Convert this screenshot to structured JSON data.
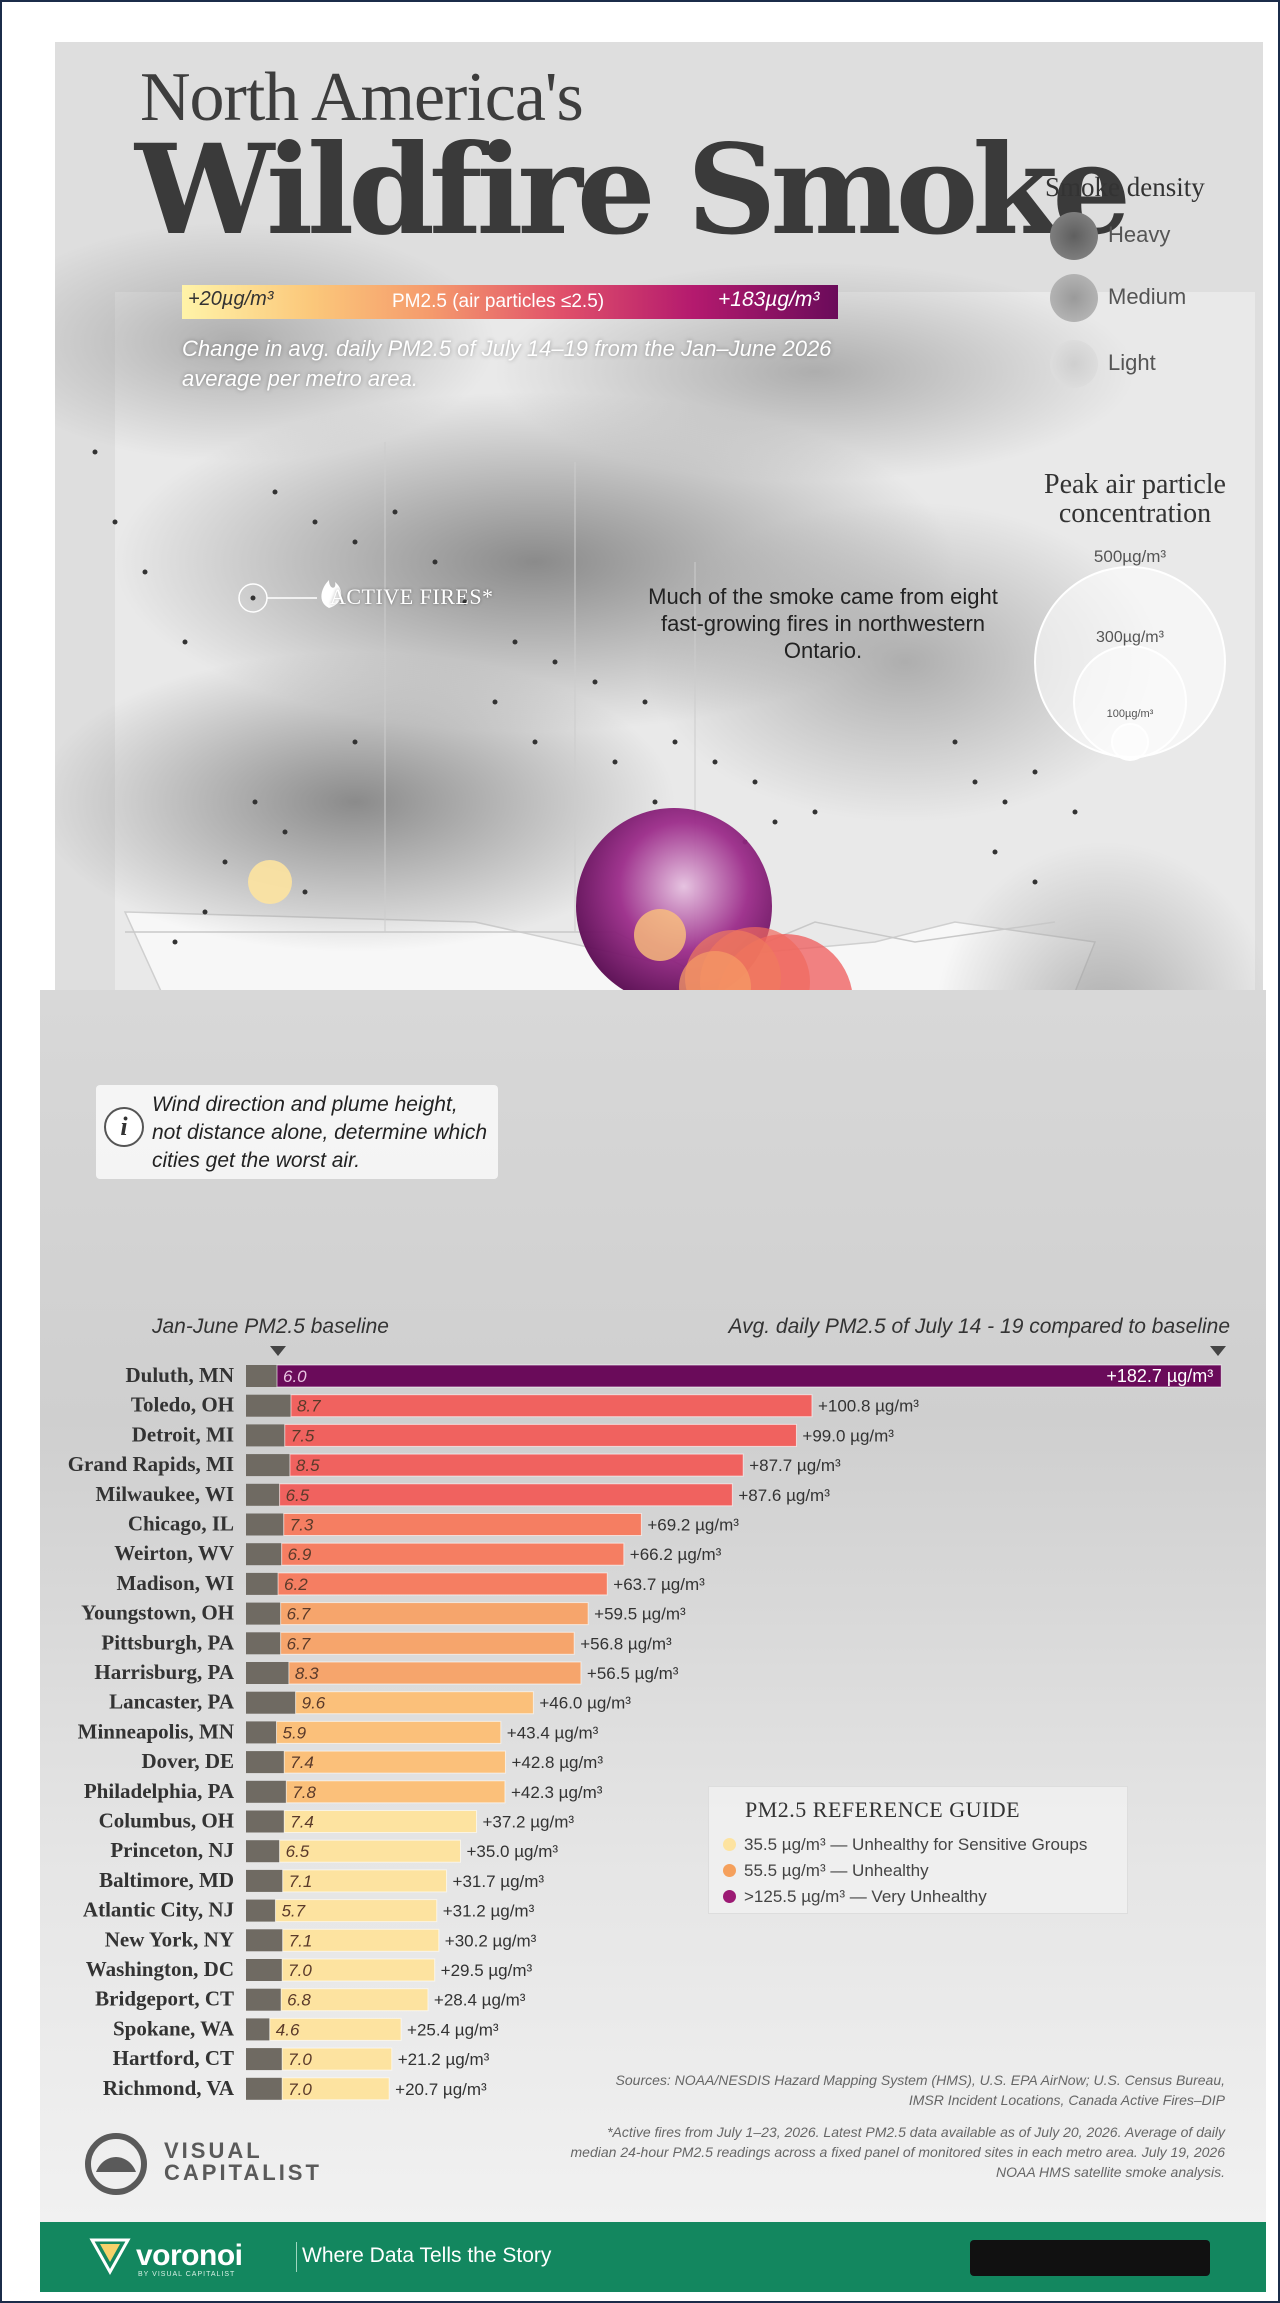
{
  "title": {
    "line1": "North America's",
    "line2": "Wildfire Smoke"
  },
  "scale": {
    "min_label": "+20µg/m³",
    "mid_label": "PM2.5 (air particles ≤2.5)",
    "max_label": "+183µg/m³"
  },
  "subtitle": "Change in avg. daily PM2.5 of July 14–19 from the Jan–June 2026 average per metro area.",
  "smoke_density": {
    "title": "Smoke density",
    "items": [
      {
        "label": "Heavy",
        "color": "#6a6a6a"
      },
      {
        "label": "Medium",
        "color": "#9a9a9a"
      },
      {
        "label": "Light",
        "color": "#cfcfcf"
      }
    ]
  },
  "peak": {
    "title": "Peak air particle concentration",
    "labels": [
      "500µg/m³",
      "300µg/m³",
      "100µg/m³"
    ]
  },
  "map": {
    "fires_label": "ACTIVE FIRES*",
    "note": "Much of the smoke came from eight fast-growing fires in northwestern Ontario.",
    "info_icon": "i",
    "info_text": "Wind direction and plume height, not distance alone, determine which cities get the worst air."
  },
  "chart_headers": {
    "left": "Jan-June PM2.5 baseline",
    "right": "Avg. daily PM2.5 of July 14 - 19 compared to baseline"
  },
  "chart_data": {
    "type": "bar",
    "value_unit": "µg/m³",
    "categories": [
      "Duluth, MN",
      "Toledo, OH",
      "Detroit, MI",
      "Grand Rapids, MI",
      "Milwaukee, WI",
      "Chicago, IL",
      "Weirton, WV",
      "Madison, WI",
      "Youngstown, OH",
      "Pittsburgh, PA",
      "Harrisburg, PA",
      "Lancaster, PA",
      "Minneapolis, MN",
      "Dover, DE",
      "Philadelphia, PA",
      "Columbus, OH",
      "Princeton, NJ",
      "Baltimore, MD",
      "Atlantic City, NJ",
      "New York, NY",
      "Washington, DC",
      "Bridgeport, CT",
      "Spokane, WA",
      "Hartford, CT",
      "Richmond, VA"
    ],
    "series": [
      {
        "name": "Jan-June PM2.5 baseline",
        "values": [
          6.0,
          8.7,
          7.5,
          8.5,
          6.5,
          7.3,
          6.9,
          6.2,
          6.7,
          6.7,
          8.3,
          9.6,
          5.9,
          7.4,
          7.8,
          7.4,
          6.5,
          7.1,
          5.7,
          7.1,
          7.0,
          6.8,
          4.6,
          7.0,
          7.0
        ]
      },
      {
        "name": "Avg. daily PM2.5 of July 14 - 19 compared to baseline",
        "values": [
          182.7,
          100.8,
          99.0,
          87.7,
          87.6,
          69.2,
          66.2,
          63.7,
          59.5,
          56.8,
          56.5,
          46.0,
          43.4,
          42.8,
          42.3,
          37.2,
          35.0,
          31.7,
          31.2,
          30.2,
          29.5,
          28.4,
          25.4,
          21.2,
          20.7
        ]
      }
    ],
    "baseline_labels": [
      "6.0",
      "8.7",
      "7.5",
      "8.5",
      "6.5",
      "7.3",
      "6.9",
      "6.2",
      "6.7",
      "6.7",
      "8.3",
      "9.6",
      "5.9",
      "7.4",
      "7.8",
      "7.4",
      "6.5",
      "7.1",
      "5.7",
      "7.1",
      "7.0",
      "6.8",
      "4.6",
      "7.0",
      "7.0"
    ],
    "change_labels": [
      "+182.7 µg/m³",
      "+100.8 µg/m³",
      "+99.0 µg/m³",
      "+87.7 µg/m³",
      "+87.6 µg/m³",
      "+69.2 µg/m³",
      "+66.2 µg/m³",
      "+63.7 µg/m³",
      "+59.5 µg/m³",
      "+56.8 µg/m³",
      "+56.5 µg/m³",
      "+46.0 µg/m³",
      "+43.4 µg/m³",
      "+42.8 µg/m³",
      "+42.3 µg/m³",
      "+37.2 µg/m³",
      "+35.0 µg/m³",
      "+31.7 µg/m³",
      "+31.2 µg/m³",
      "+30.2 µg/m³",
      "+29.5 µg/m³",
      "+28.4 µg/m³",
      "+25.4 µg/m³",
      "+21.2 µg/m³",
      "+20.7 µg/m³"
    ],
    "xlim": [
      0,
      190
    ]
  },
  "legend": {
    "title": "PM2.5 REFERENCE GUIDE",
    "items": [
      {
        "label": "35.5 µg/m³ — Unhealthy for Sensitive Groups",
        "color": "#fde3a0"
      },
      {
        "label": "55.5 µg/m³ — Unhealthy",
        "color": "#f5a05c"
      },
      {
        "label": ">125.5 µg/m³ — Very Unhealthy",
        "color": "#9c1a74"
      }
    ]
  },
  "sources": "Sources: NOAA/NESDIS Hazard Mapping System (HMS), U.S. EPA AirNow; U.S. Census Bureau, IMSR Incident Locations, Canada Active Fires–DIP",
  "footnote": "*Active fires from July 1–23, 2026. Latest PM2.5 data available as of July 20, 2026. Average of daily median 24-hour PM2.5 readings across a fixed panel of monitored sites in each metro area. July 19, 2026 NOAA HMS satellite smoke analysis.",
  "brand": {
    "vc_line1": "VISUAL",
    "vc_line2": "CAPITALIST",
    "voronoi": "voronoi",
    "voronoi_sub": "BY VISUAL CAPITALIST",
    "tagline": "Where Data Tells the Story"
  },
  "colors": {
    "footer": "#13875f",
    "very_unhealthy": "#6a0b5a",
    "unhealthy_red": "#f0625f",
    "unhealthy_orange": "#f5a066",
    "sensitive": "#fde3a0",
    "baseline_bar": "#6f6a62"
  }
}
